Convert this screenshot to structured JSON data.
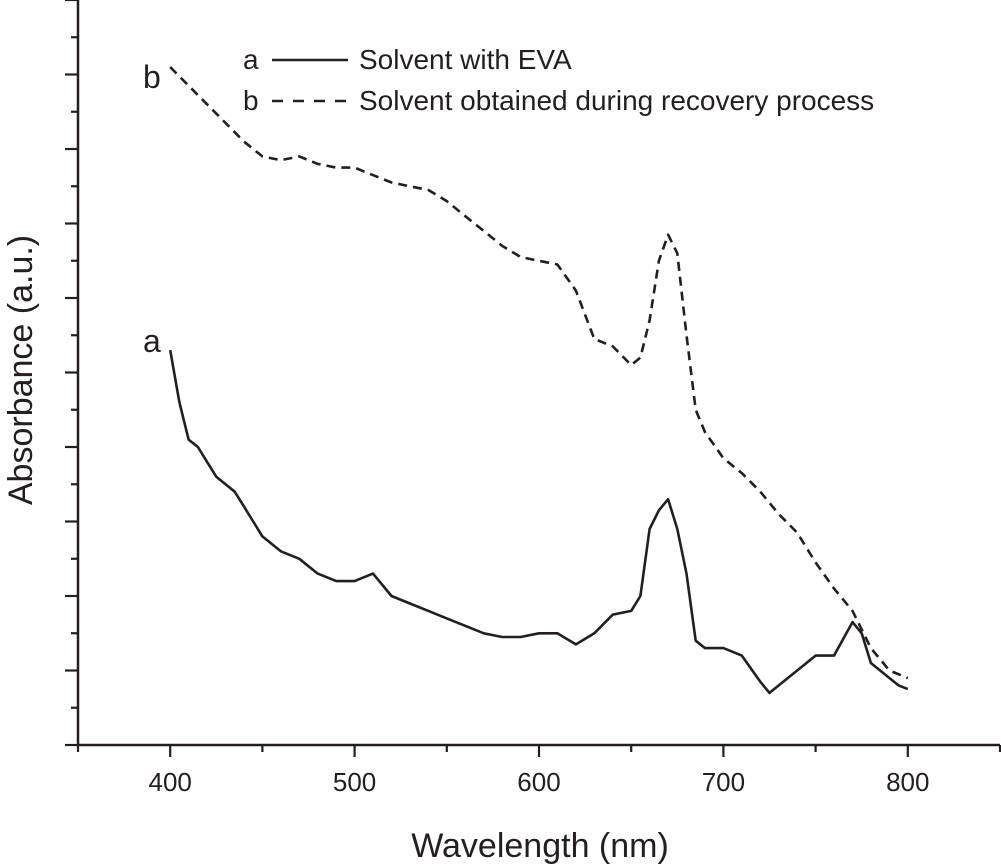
{
  "chart_data": {
    "type": "line",
    "title": "",
    "xlabel": "Wavelength (nm)",
    "ylabel": "Absorbance (a.u.)",
    "xlim": [
      350,
      850
    ],
    "ylim": [
      0,
      10
    ],
    "x_ticks": [
      400,
      500,
      600,
      700,
      800
    ],
    "y_ticks_labeled": false,
    "grid": false,
    "legend_position": "top-right",
    "series": [
      {
        "name": "Solvent with EVA",
        "legend_key": "a",
        "curve_label": "a",
        "line_style": "solid",
        "color": "#231f20",
        "x": [
          400,
          405,
          410,
          415,
          420,
          425,
          430,
          435,
          440,
          450,
          460,
          470,
          480,
          490,
          500,
          510,
          520,
          530,
          540,
          550,
          560,
          570,
          580,
          590,
          600,
          610,
          620,
          630,
          640,
          650,
          655,
          660,
          665,
          670,
          675,
          680,
          685,
          690,
          700,
          710,
          720,
          725,
          730,
          740,
          750,
          760,
          770,
          775,
          780,
          790,
          795,
          800
        ],
        "y": [
          5.3,
          4.6,
          4.1,
          4.0,
          3.8,
          3.6,
          3.5,
          3.4,
          3.2,
          2.8,
          2.6,
          2.5,
          2.3,
          2.2,
          2.2,
          2.3,
          2.0,
          1.9,
          1.8,
          1.7,
          1.6,
          1.5,
          1.45,
          1.45,
          1.5,
          1.5,
          1.35,
          1.5,
          1.75,
          1.8,
          2.0,
          2.9,
          3.15,
          3.3,
          2.9,
          2.3,
          1.4,
          1.3,
          1.3,
          1.2,
          0.85,
          0.7,
          0.8,
          1.0,
          1.2,
          1.2,
          1.65,
          1.5,
          1.1,
          0.9,
          0.8,
          0.75
        ]
      },
      {
        "name": "Solvent obtained during recovery process",
        "legend_key": "b",
        "curve_label": "b",
        "line_style": "dashed",
        "color": "#231f20",
        "x": [
          400,
          410,
          420,
          430,
          440,
          450,
          460,
          470,
          480,
          490,
          500,
          510,
          520,
          530,
          540,
          550,
          560,
          570,
          580,
          590,
          600,
          610,
          620,
          630,
          640,
          650,
          655,
          660,
          665,
          670,
          675,
          680,
          685,
          690,
          700,
          710,
          720,
          730,
          740,
          750,
          760,
          770,
          780,
          790,
          800
        ],
        "y": [
          9.1,
          8.85,
          8.6,
          8.35,
          8.1,
          7.9,
          7.85,
          7.9,
          7.8,
          7.75,
          7.75,
          7.65,
          7.55,
          7.5,
          7.45,
          7.3,
          7.1,
          6.9,
          6.7,
          6.55,
          6.5,
          6.45,
          6.1,
          5.45,
          5.35,
          5.1,
          5.2,
          5.7,
          6.5,
          6.85,
          6.6,
          5.5,
          4.5,
          4.2,
          3.85,
          3.65,
          3.4,
          3.1,
          2.85,
          2.45,
          2.1,
          1.8,
          1.3,
          1.0,
          0.9
        ]
      }
    ]
  }
}
